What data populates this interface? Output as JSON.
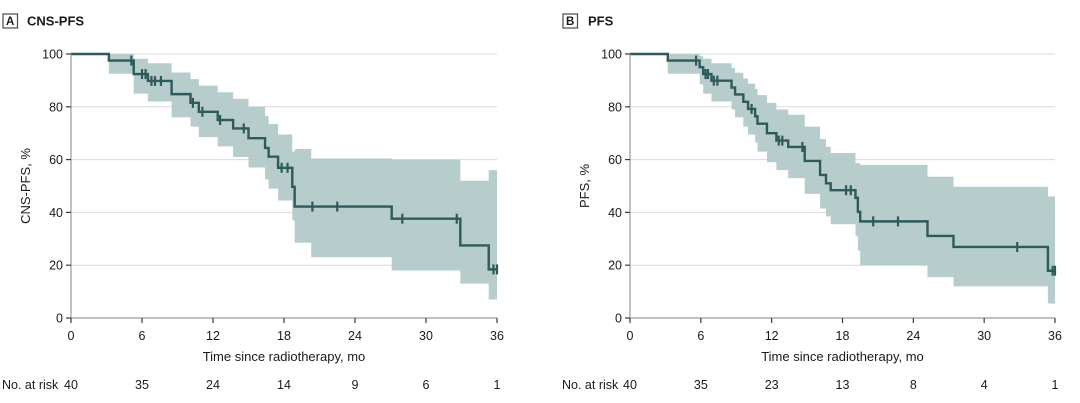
{
  "figure": {
    "panels": [
      {
        "panel_letter": "A",
        "panel_title": "CNS-PFS"
      },
      {
        "panel_letter": "B",
        "panel_title": "PFS"
      }
    ]
  },
  "chart_data": [
    {
      "type": "line",
      "subtype": "kaplan-meier-step",
      "panel_letter": "A",
      "title": "CNS-PFS",
      "xlabel": "Time since radiotherapy, mo",
      "ylabel": "CNS-PFS, %",
      "xlim": [
        0,
        36
      ],
      "ylim": [
        0,
        100
      ],
      "xticks": [
        0,
        6,
        12,
        18,
        24,
        30,
        36
      ],
      "yticks": [
        0,
        20,
        40,
        60,
        80,
        100
      ],
      "grid": "horizontal",
      "line_color": "#2e5a5c",
      "band_color": "#aec8c7",
      "steps_note": "each step: [time_mo, survival_pct, ci_low_pct, ci_high_pct]",
      "steps": [
        [
          0,
          100,
          100,
          100
        ],
        [
          3.2,
          97.5,
          92.5,
          100
        ],
        [
          5.3,
          92.4,
          85,
          98.2
        ],
        [
          6.5,
          89.8,
          82,
          96.5
        ],
        [
          8.5,
          84.8,
          76,
          93
        ],
        [
          10.1,
          81.5,
          72.5,
          90.5
        ],
        [
          10.8,
          78.1,
          68.5,
          88
        ],
        [
          12.4,
          75.0,
          65,
          85.5
        ],
        [
          13.7,
          71.8,
          61,
          83
        ],
        [
          15.0,
          68.1,
          57,
          80
        ],
        [
          16.4,
          64.4,
          52.5,
          76.5
        ],
        [
          16.7,
          61.1,
          49,
          73.5
        ],
        [
          17.5,
          56.9,
          44.5,
          69.5
        ],
        [
          18.7,
          49.7,
          37,
          63
        ],
        [
          18.9,
          42.2,
          28.5,
          64
        ],
        [
          20.3,
          42.2,
          23,
          60.4
        ],
        [
          27.1,
          37.6,
          18,
          60
        ],
        [
          32.9,
          27.5,
          13,
          52
        ],
        [
          35.3,
          18.4,
          7,
          56
        ]
      ],
      "censor_marks": [
        [
          5.1,
          97.5
        ],
        [
          6.0,
          92.4
        ],
        [
          6.3,
          92.4
        ],
        [
          6.8,
          89.8
        ],
        [
          7.1,
          89.8
        ],
        [
          7.6,
          89.8
        ],
        [
          10.3,
          81.5
        ],
        [
          11.1,
          78.1
        ],
        [
          12.6,
          75.0
        ],
        [
          14.6,
          71.8
        ],
        [
          17.8,
          56.9
        ],
        [
          18.3,
          56.9
        ],
        [
          20.4,
          42.2
        ],
        [
          22.5,
          42.2
        ],
        [
          28.0,
          37.6
        ],
        [
          32.6,
          37.6
        ],
        [
          35.7,
          18.4
        ],
        [
          36.0,
          18.4
        ]
      ],
      "at_risk": {
        "label": "No. at risk",
        "times": [
          0,
          6,
          12,
          18,
          24,
          30,
          36
        ],
        "counts": [
          40,
          35,
          24,
          14,
          9,
          6,
          1
        ]
      }
    },
    {
      "type": "line",
      "subtype": "kaplan-meier-step",
      "panel_letter": "B",
      "title": "PFS",
      "xlabel": "Time since radiotherapy, mo",
      "ylabel": "PFS, %",
      "xlim": [
        0,
        36
      ],
      "ylim": [
        0,
        100
      ],
      "xticks": [
        0,
        6,
        12,
        18,
        24,
        30,
        36
      ],
      "yticks": [
        0,
        20,
        40,
        60,
        80,
        100
      ],
      "grid": "horizontal",
      "line_color": "#2e5a5c",
      "band_color": "#aec8c7",
      "steps_note": "each step: [time_mo, survival_pct, ci_low_pct, ci_high_pct]",
      "steps": [
        [
          0,
          100,
          100,
          100
        ],
        [
          3.2,
          97.5,
          92.5,
          100
        ],
        [
          5.9,
          95.0,
          88.5,
          99.2
        ],
        [
          6.2,
          92.4,
          85,
          98.2
        ],
        [
          6.9,
          89.9,
          82,
          96.5
        ],
        [
          8.6,
          87.3,
          79,
          94.7
        ],
        [
          8.9,
          84.7,
          76,
          92.9
        ],
        [
          9.6,
          81.9,
          72.5,
          90.7
        ],
        [
          10.0,
          79.2,
          69.5,
          88.8
        ],
        [
          10.6,
          76.4,
          66.5,
          86.7
        ],
        [
          10.8,
          73.6,
          63,
          84.4
        ],
        [
          11.6,
          70.0,
          59,
          81.5
        ],
        [
          12.4,
          67.2,
          56,
          79
        ],
        [
          13.4,
          64.8,
          53,
          77
        ],
        [
          14.8,
          59.5,
          47,
          72.5
        ],
        [
          16.1,
          54.2,
          41.5,
          67.8
        ],
        [
          16.6,
          51.0,
          38.5,
          64.8
        ],
        [
          17.0,
          48.4,
          35.5,
          62.5
        ],
        [
          19.1,
          45.5,
          31,
          58.7
        ],
        [
          19.3,
          40.2,
          25.5,
          58.7
        ],
        [
          19.5,
          36.6,
          20,
          58
        ],
        [
          25.2,
          31.1,
          15.5,
          53.5
        ],
        [
          27.4,
          26.9,
          12,
          49.7
        ],
        [
          35.4,
          17.9,
          5.5,
          46
        ]
      ],
      "censor_marks": [
        [
          5.6,
          97.5
        ],
        [
          6.4,
          92.4
        ],
        [
          6.6,
          92.4
        ],
        [
          7.1,
          89.9
        ],
        [
          7.4,
          89.9
        ],
        [
          10.3,
          79.2
        ],
        [
          12.6,
          67.2
        ],
        [
          12.9,
          67.2
        ],
        [
          14.6,
          64.8
        ],
        [
          18.3,
          48.4
        ],
        [
          18.7,
          48.4
        ],
        [
          20.6,
          36.6
        ],
        [
          22.7,
          36.6
        ],
        [
          32.8,
          26.9
        ],
        [
          35.8,
          17.9
        ],
        [
          36.0,
          17.9
        ]
      ],
      "at_risk": {
        "label": "No. at risk",
        "times": [
          0,
          6,
          12,
          18,
          24,
          30,
          36
        ],
        "counts": [
          40,
          35,
          23,
          13,
          8,
          4,
          1
        ]
      }
    }
  ]
}
